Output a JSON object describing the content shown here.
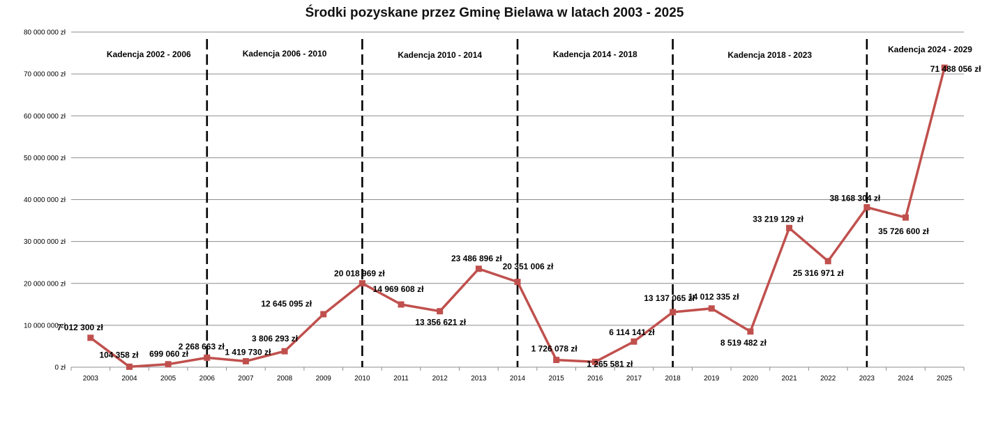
{
  "chart_data": {
    "type": "line",
    "title": "Środki pozyskane przez Gminę Bielawa w latach 2003 - 2025",
    "xlabel": "",
    "ylabel": "",
    "ylim": [
      0,
      80000000
    ],
    "grid": true,
    "y_ticks": [
      {
        "value": 0,
        "label": "0 zł"
      },
      {
        "value": 10000000,
        "label": "10 000 000 zł"
      },
      {
        "value": 20000000,
        "label": "20 000 000 zł"
      },
      {
        "value": 30000000,
        "label": "30 000 000 zł"
      },
      {
        "value": 40000000,
        "label": "40 000 000 zł"
      },
      {
        "value": 50000000,
        "label": "50 000 000 zł"
      },
      {
        "value": 60000000,
        "label": "60 000 000 zł"
      },
      {
        "value": 70000000,
        "label": "70 000 000 zł"
      },
      {
        "value": 80000000,
        "label": "80 000 000 zł"
      }
    ],
    "categories": [
      "2003",
      "2004",
      "2005",
      "2006",
      "2007",
      "2008",
      "2009",
      "2010",
      "2011",
      "2012",
      "2013",
      "2014",
      "2015",
      "2016",
      "2017",
      "2018",
      "2019",
      "2020",
      "2021",
      "2022",
      "2023",
      "2024",
      "2025"
    ],
    "series": [
      {
        "name": "Środki pozyskane",
        "color": "#c0504d",
        "values": [
          7012300,
          104358,
          699060,
          2268663,
          1419730,
          3806293,
          12645095,
          20018969,
          14969608,
          13356621,
          23486896,
          20351006,
          1726078,
          1265581,
          6114141,
          13137065,
          14012335,
          8519482,
          33219129,
          25316971,
          38168304,
          35726600,
          71488056
        ],
        "labels": [
          "7 012 300 zł",
          "104 358 zł",
          "699 060 zł",
          "2 268 663 zł",
          "1 419 730 zł",
          "3 806 293 zł",
          "12 645 095 zł",
          "20 018 969 zł",
          "14 969 608 zł",
          "13 356 621 zł",
          "23 486 896 zł",
          "20 351 006 zł",
          "1 726 078 zł",
          "1 265 581 zł",
          "6 114 141 zł",
          "13 137 065 zł",
          "14 012 335 zł",
          "8 519 482 zł",
          "33 219 129 zł",
          "25 316 971 zł",
          "38 168 304 zł",
          "35 726 600 zł",
          "71 488 056 zł"
        ]
      }
    ],
    "term_dividers": [
      "2006",
      "2010",
      "2014",
      "2018",
      "2023"
    ],
    "annotations": [
      {
        "text": "Kadencja 2002 - 2006",
        "from": "2003",
        "to": "2006"
      },
      {
        "text": "Kadencja 2006 - 2010",
        "from": "2006",
        "to": "2010"
      },
      {
        "text": "Kadencja 2010 - 2014",
        "from": "2010",
        "to": "2014"
      },
      {
        "text": "Kadencja 2014 - 2018",
        "from": "2014",
        "to": "2018"
      },
      {
        "text": "Kadencja 2018 - 2023",
        "from": "2018",
        "to": "2023"
      },
      {
        "text": "Kadencja 2024 - 2029",
        "from": "2023",
        "to": "2025"
      }
    ]
  }
}
